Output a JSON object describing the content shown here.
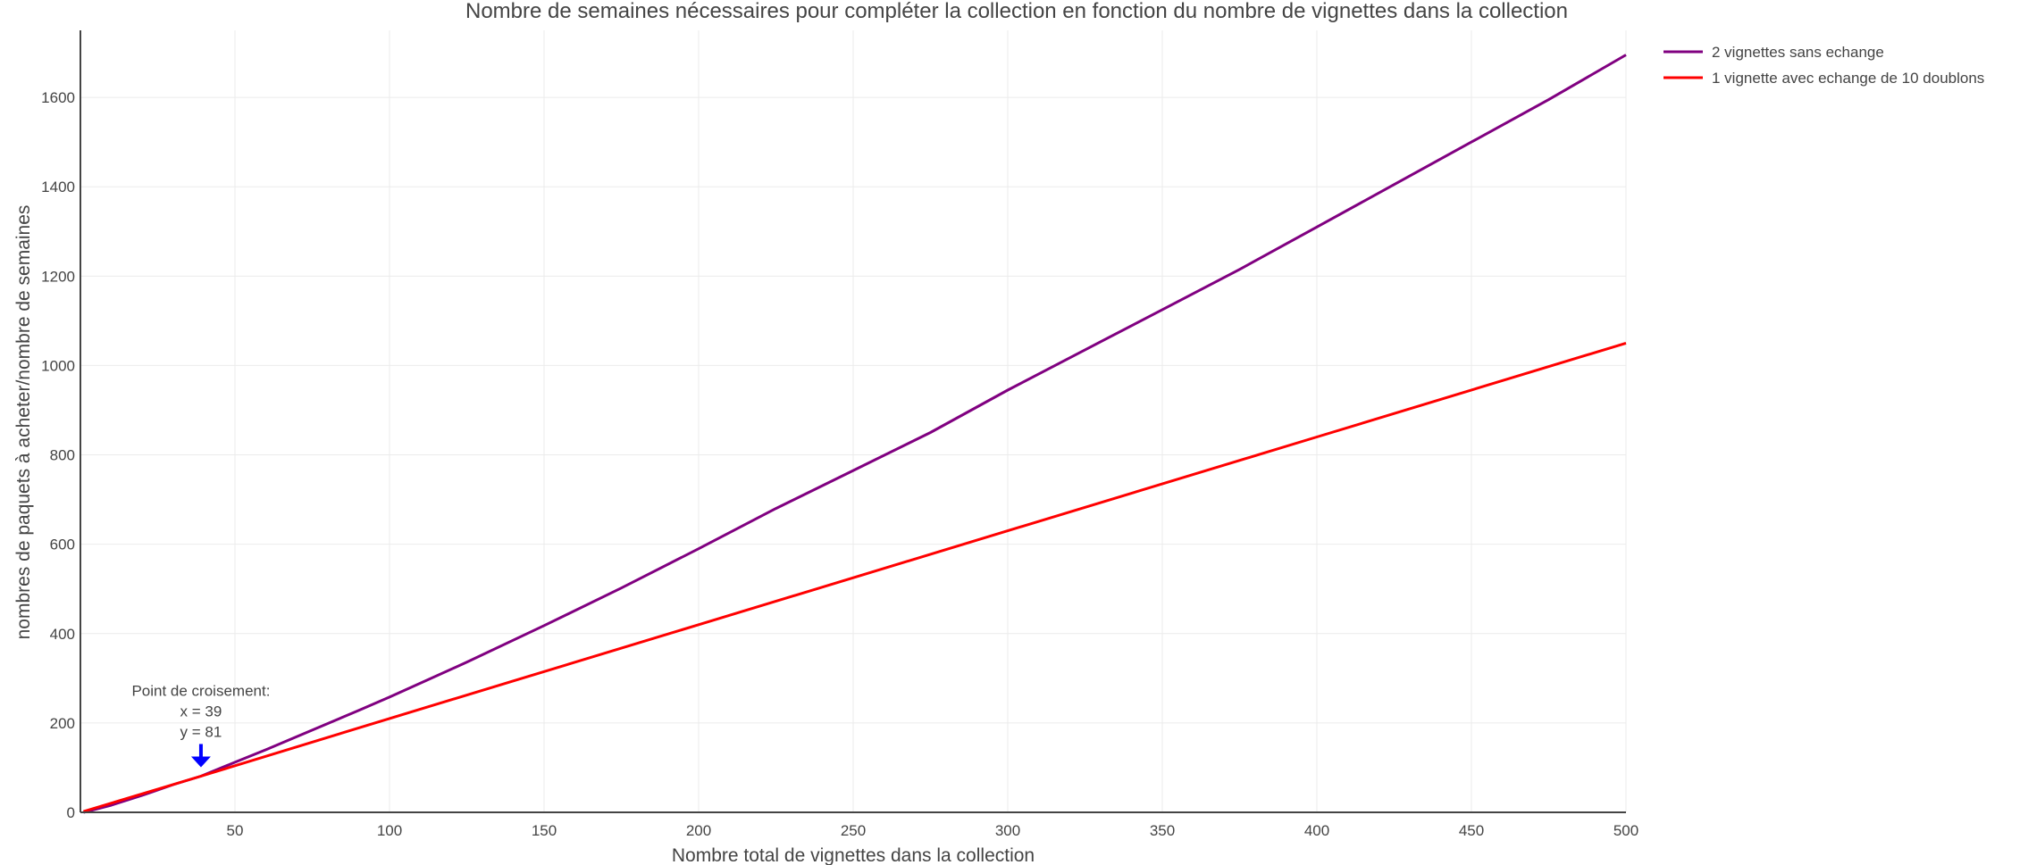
{
  "chart_data": {
    "type": "line",
    "title": "Nombre de semaines nécessaires pour compléter la collection en fonction du nombre de vignettes dans la collection",
    "xlabel": "Nombre total de vignettes dans la collection",
    "ylabel": "nombres de paquets à acheter/nombre de semaines",
    "xlim": [
      0,
      500
    ],
    "ylim": [
      0,
      1750
    ],
    "x_ticks": [
      50,
      100,
      150,
      200,
      250,
      300,
      350,
      400,
      450,
      500
    ],
    "y_ticks": [
      0,
      200,
      400,
      600,
      800,
      1000,
      1200,
      1400,
      1600
    ],
    "grid": true,
    "legend_position": "top-right",
    "series": [
      {
        "name": "2 vignettes sans echange",
        "color": "#800080",
        "x": [
          1,
          10,
          20,
          30,
          39,
          50,
          60,
          75,
          90,
          100,
          125,
          150,
          175,
          200,
          225,
          250,
          275,
          300,
          325,
          350,
          375,
          400,
          425,
          450,
          475,
          500
        ],
        "y": [
          0,
          16,
          38,
          62,
          81,
          112,
          140,
          184,
          228,
          258,
          336,
          418,
          502,
          590,
          680,
          765,
          850,
          945,
          1035,
          1125,
          1215,
          1310,
          1405,
          1500,
          1595,
          1695
        ]
      },
      {
        "name": "1 vignette avec echange de 10 doublons",
        "color": "#ff0000",
        "x": [
          1,
          39,
          100,
          200,
          300,
          400,
          500
        ],
        "y": [
          2,
          81,
          210,
          420,
          630,
          840,
          1050
        ]
      }
    ],
    "annotations": [
      {
        "lines": [
          "Point de croisement:",
          "x = 39",
          "y = 81"
        ],
        "x": 39,
        "y": 81,
        "arrow_color": "#0000ff"
      }
    ]
  }
}
